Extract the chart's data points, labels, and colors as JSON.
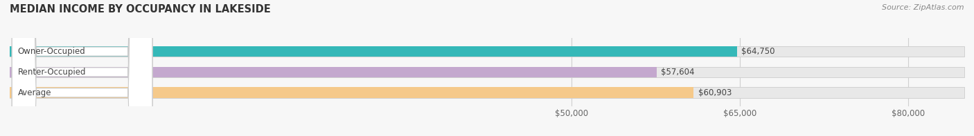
{
  "title": "MEDIAN INCOME BY OCCUPANCY IN LAKESIDE",
  "source": "Source: ZipAtlas.com",
  "categories": [
    "Owner-Occupied",
    "Renter-Occupied",
    "Average"
  ],
  "values": [
    64750,
    57604,
    60903
  ],
  "bar_colors": [
    "#35b8b8",
    "#c4a8ce",
    "#f5c98a"
  ],
  "xlim": [
    0,
    85000
  ],
  "xticks": [
    50000,
    65000,
    80000
  ],
  "xtick_labels": [
    "$50,000",
    "$65,000",
    "$80,000"
  ],
  "title_fontsize": 10.5,
  "source_fontsize": 8,
  "label_fontsize": 8.5,
  "tick_fontsize": 8.5,
  "bar_height": 0.52,
  "figsize": [
    14.06,
    1.97
  ],
  "dpi": 100,
  "bg_color": "#f7f7f7",
  "bar_bg_color": "#e8e8e8",
  "label_bg_color": "#ffffff",
  "grid_color": "#d0d0d0"
}
